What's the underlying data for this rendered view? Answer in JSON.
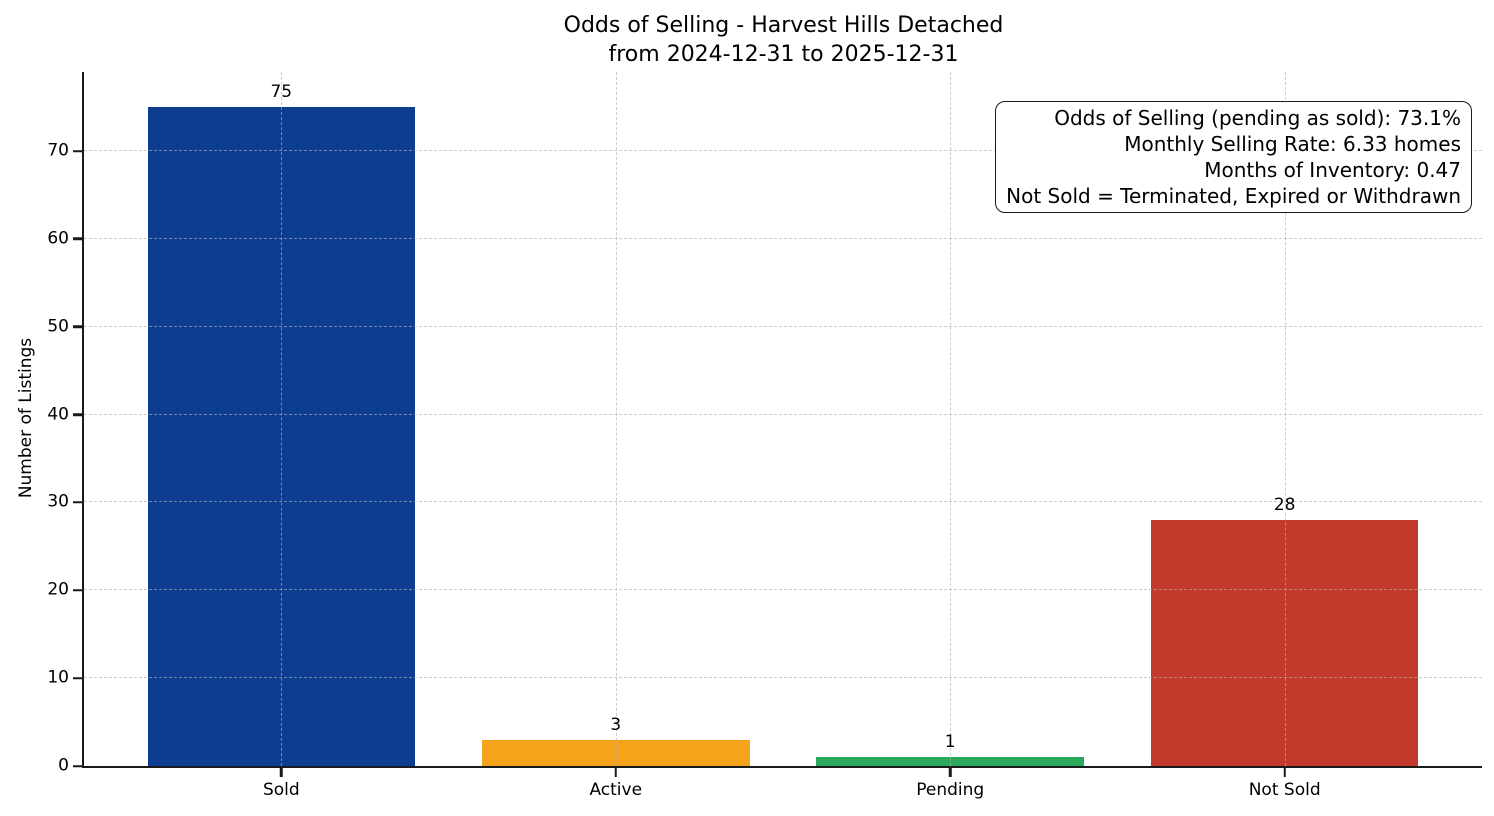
{
  "title": {
    "line1": "Odds of Selling - Harvest Hills Detached",
    "line2": "from 2024-12-31 to 2025-12-31"
  },
  "chart_data": {
    "type": "bar",
    "title": "Odds of Selling - Harvest Hills Detached\nfrom 2024-12-31 to 2025-12-31",
    "categories": [
      "Sold",
      "Active",
      "Pending",
      "Not Sold"
    ],
    "values": [
      75,
      3,
      1,
      28
    ],
    "bar_colors": [
      "#0d3d91",
      "#f5a31b",
      "#2aa85c",
      "#c23a2b"
    ],
    "xlabel": "",
    "ylabel": "Number of Listings",
    "ylim": [
      0,
      79
    ],
    "yticks": [
      0,
      10,
      20,
      30,
      40,
      50,
      60,
      70
    ],
    "grid": true,
    "grid_style": "dashed",
    "legend": "none",
    "annotation": {
      "position": "top-right",
      "lines": [
        "Odds of Selling (pending as sold): 73.1%",
        "Monthly Selling Rate: 6.33 homes",
        "Months of Inventory: 0.47",
        "Not Sold = Terminated, Expired or Withdrawn"
      ]
    }
  }
}
